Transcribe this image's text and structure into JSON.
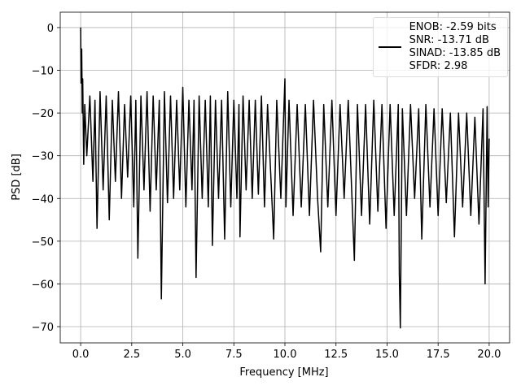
{
  "chart_data": {
    "type": "line",
    "xlabel": "Frequency [MHz]",
    "ylabel": "PSD [dB]",
    "xlim": [
      -1.0,
      21.0
    ],
    "ylim": [
      -73.8,
      3.6
    ],
    "xticks": [
      {
        "value": 0,
        "label": "0.0"
      },
      2.5,
      {
        "value": 5,
        "label": "5.0"
      },
      7.5,
      {
        "value": 10,
        "label": "10.0"
      },
      12.5,
      {
        "value": 15,
        "label": "15.0"
      },
      17.5,
      {
        "value": 20,
        "label": "20.0"
      }
    ],
    "yticks": [
      {
        "value": -70,
        "label": "−70"
      },
      {
        "value": -60,
        "label": "−60"
      },
      {
        "value": -50,
        "label": "−50"
      },
      {
        "value": -40,
        "label": "−40"
      },
      {
        "value": -30,
        "label": "−30"
      },
      {
        "value": -20,
        "label": "−20"
      },
      {
        "value": -10,
        "label": "−10"
      },
      0
    ],
    "grid": true,
    "legend": "upper right",
    "x": [
      0,
      0.02,
      0.05,
      0.08,
      0.1,
      0.15,
      0.2,
      0.3,
      0.45,
      0.6,
      0.7,
      0.8,
      0.95,
      1.1,
      1.25,
      1.4,
      1.55,
      1.7,
      1.85,
      2.0,
      2.15,
      2.3,
      2.45,
      2.6,
      2.7,
      2.8,
      2.95,
      3.1,
      3.25,
      3.4,
      3.55,
      3.7,
      3.85,
      3.95,
      4.1,
      4.25,
      4.4,
      4.55,
      4.7,
      4.85,
      5.0,
      5.15,
      5.3,
      5.45,
      5.55,
      5.65,
      5.8,
      5.95,
      6.1,
      6.25,
      6.35,
      6.45,
      6.6,
      6.75,
      6.9,
      7.05,
      7.2,
      7.35,
      7.5,
      7.65,
      7.75,
      7.8,
      7.95,
      8.1,
      8.25,
      8.4,
      8.55,
      8.7,
      8.85,
      9.0,
      9.15,
      9.45,
      9.6,
      9.8,
      10.0,
      10.05,
      10.2,
      10.4,
      10.6,
      10.8,
      11.0,
      11.2,
      11.4,
      11.6,
      11.75,
      11.9,
      12.1,
      12.3,
      12.5,
      12.7,
      12.9,
      13.1,
      13.3,
      13.4,
      13.55,
      13.75,
      13.95,
      14.15,
      14.35,
      14.55,
      14.75,
      14.95,
      15.15,
      15.35,
      15.55,
      15.6,
      15.65,
      15.75,
      15.95,
      16.15,
      16.35,
      16.55,
      16.7,
      16.9,
      17.1,
      17.3,
      17.5,
      17.7,
      17.9,
      18.1,
      18.3,
      18.5,
      18.7,
      18.9,
      19.1,
      19.3,
      19.5,
      19.7,
      19.8,
      19.9,
      19.95,
      20.0
    ],
    "series": [
      {
        "name": "ENOB: -2.59 bits\nSNR: -13.71 dB\nSINAD: -13.85 dB\nSFDR: 2.98",
        "color": "#000000",
        "values": [
          0,
          -13,
          -5,
          -20,
          -12,
          -32,
          -18,
          -30,
          -16,
          -36,
          -17,
          -47,
          -15,
          -38,
          -16,
          -45,
          -17,
          -36,
          -15,
          -40,
          -18,
          -35,
          -16,
          -42,
          -17,
          -54,
          -16,
          -38,
          -15,
          -43,
          -16,
          -38,
          -17,
          -63.5,
          -15,
          -41,
          -16,
          -40,
          -17,
          -38,
          -14,
          -42,
          -17,
          -38,
          -17,
          -58.5,
          -16,
          -40,
          -17,
          -42,
          -16,
          -51,
          -17,
          -40,
          -17,
          -49.5,
          -15,
          -42,
          -17,
          -40,
          -18,
          -49,
          -16,
          -38,
          -17,
          -40,
          -17,
          -39,
          -16,
          -42,
          -18,
          -49.5,
          -17,
          -40,
          -12,
          -42,
          -17,
          -44,
          -18,
          -42,
          -18,
          -44,
          -17,
          -40,
          -52.5,
          -18,
          -42,
          -17,
          -44,
          -18,
          -40,
          -17,
          -42,
          -54.5,
          -18,
          -44,
          -18,
          -46,
          -17,
          -43,
          -18,
          -47,
          -18,
          -44,
          -18,
          -57.5,
          -70.3,
          -19,
          -44,
          -18,
          -40,
          -19,
          -49.5,
          -18,
          -42,
          -19,
          -44,
          -19,
          -41,
          -20,
          -49,
          -20,
          -42,
          -20,
          -44,
          -21,
          -46,
          -19,
          -60,
          -18.5,
          -42,
          -26
        ]
      }
    ]
  }
}
